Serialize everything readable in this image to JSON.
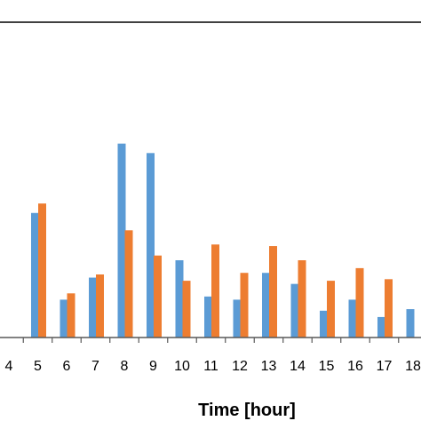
{
  "chart_data": {
    "type": "bar",
    "xlabel": "Time [hour]",
    "ylabel": "",
    "title": "",
    "categories": [
      "4",
      "5",
      "6",
      "7",
      "8",
      "9",
      "10",
      "11",
      "12",
      "13",
      "14",
      "15",
      "16",
      "17",
      "18"
    ],
    "series": [
      {
        "color": "#5B9BD5",
        "values": [
          0,
          7.9,
          2.4,
          3.8,
          12.3,
          11.7,
          4.9,
          2.6,
          2.4,
          4.1,
          3.4,
          1.7,
          2.4,
          1.3,
          1.8
        ]
      },
      {
        "color": "#ED7D31",
        "values": [
          0,
          8.5,
          2.8,
          4.0,
          6.8,
          5.2,
          3.6,
          5.9,
          4.1,
          5.8,
          4.9,
          3.6,
          4.4,
          3.7,
          0
        ]
      }
    ],
    "ylim": [
      0,
      20
    ],
    "grid": false,
    "legend": "none"
  }
}
